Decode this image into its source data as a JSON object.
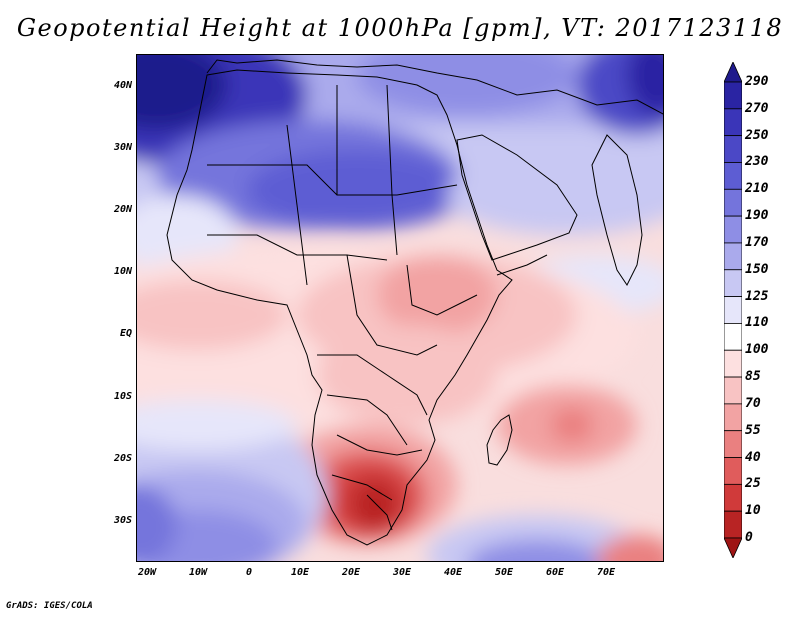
{
  "title": "Geopotential Height at 1000hPa [gpm], VT: 2017123118",
  "footer": "GrADS: IGES/COLA",
  "map": {
    "region": "Africa and Middle East",
    "y_axis_labels": [
      "40N",
      "30N",
      "20N",
      "10N",
      "EQ",
      "10S",
      "20S",
      "30S"
    ],
    "x_axis_labels": [
      "20W",
      "10W",
      "0",
      "10E",
      "20E",
      "30E",
      "40E",
      "50E",
      "60E",
      "70E"
    ]
  },
  "colorbar": {
    "levels": [
      "290",
      "270",
      "250",
      "230",
      "210",
      "190",
      "170",
      "150",
      "125",
      "110",
      "100",
      "85",
      "70",
      "55",
      "40",
      "25",
      "10",
      "0"
    ],
    "colors": [
      "#1f1a8c",
      "#2a24a3",
      "#3a35b8",
      "#4b48c6",
      "#5d5dd3",
      "#7474dc",
      "#8e8ee5",
      "#aaaaec",
      "#c8c8f3",
      "#e6e6fa",
      "#ffffff",
      "#fde0e0",
      "#f8c3c3",
      "#f2a3a3",
      "#ea8080",
      "#e05c5c",
      "#d03a3a",
      "#b82424",
      "#9e1414"
    ]
  }
}
